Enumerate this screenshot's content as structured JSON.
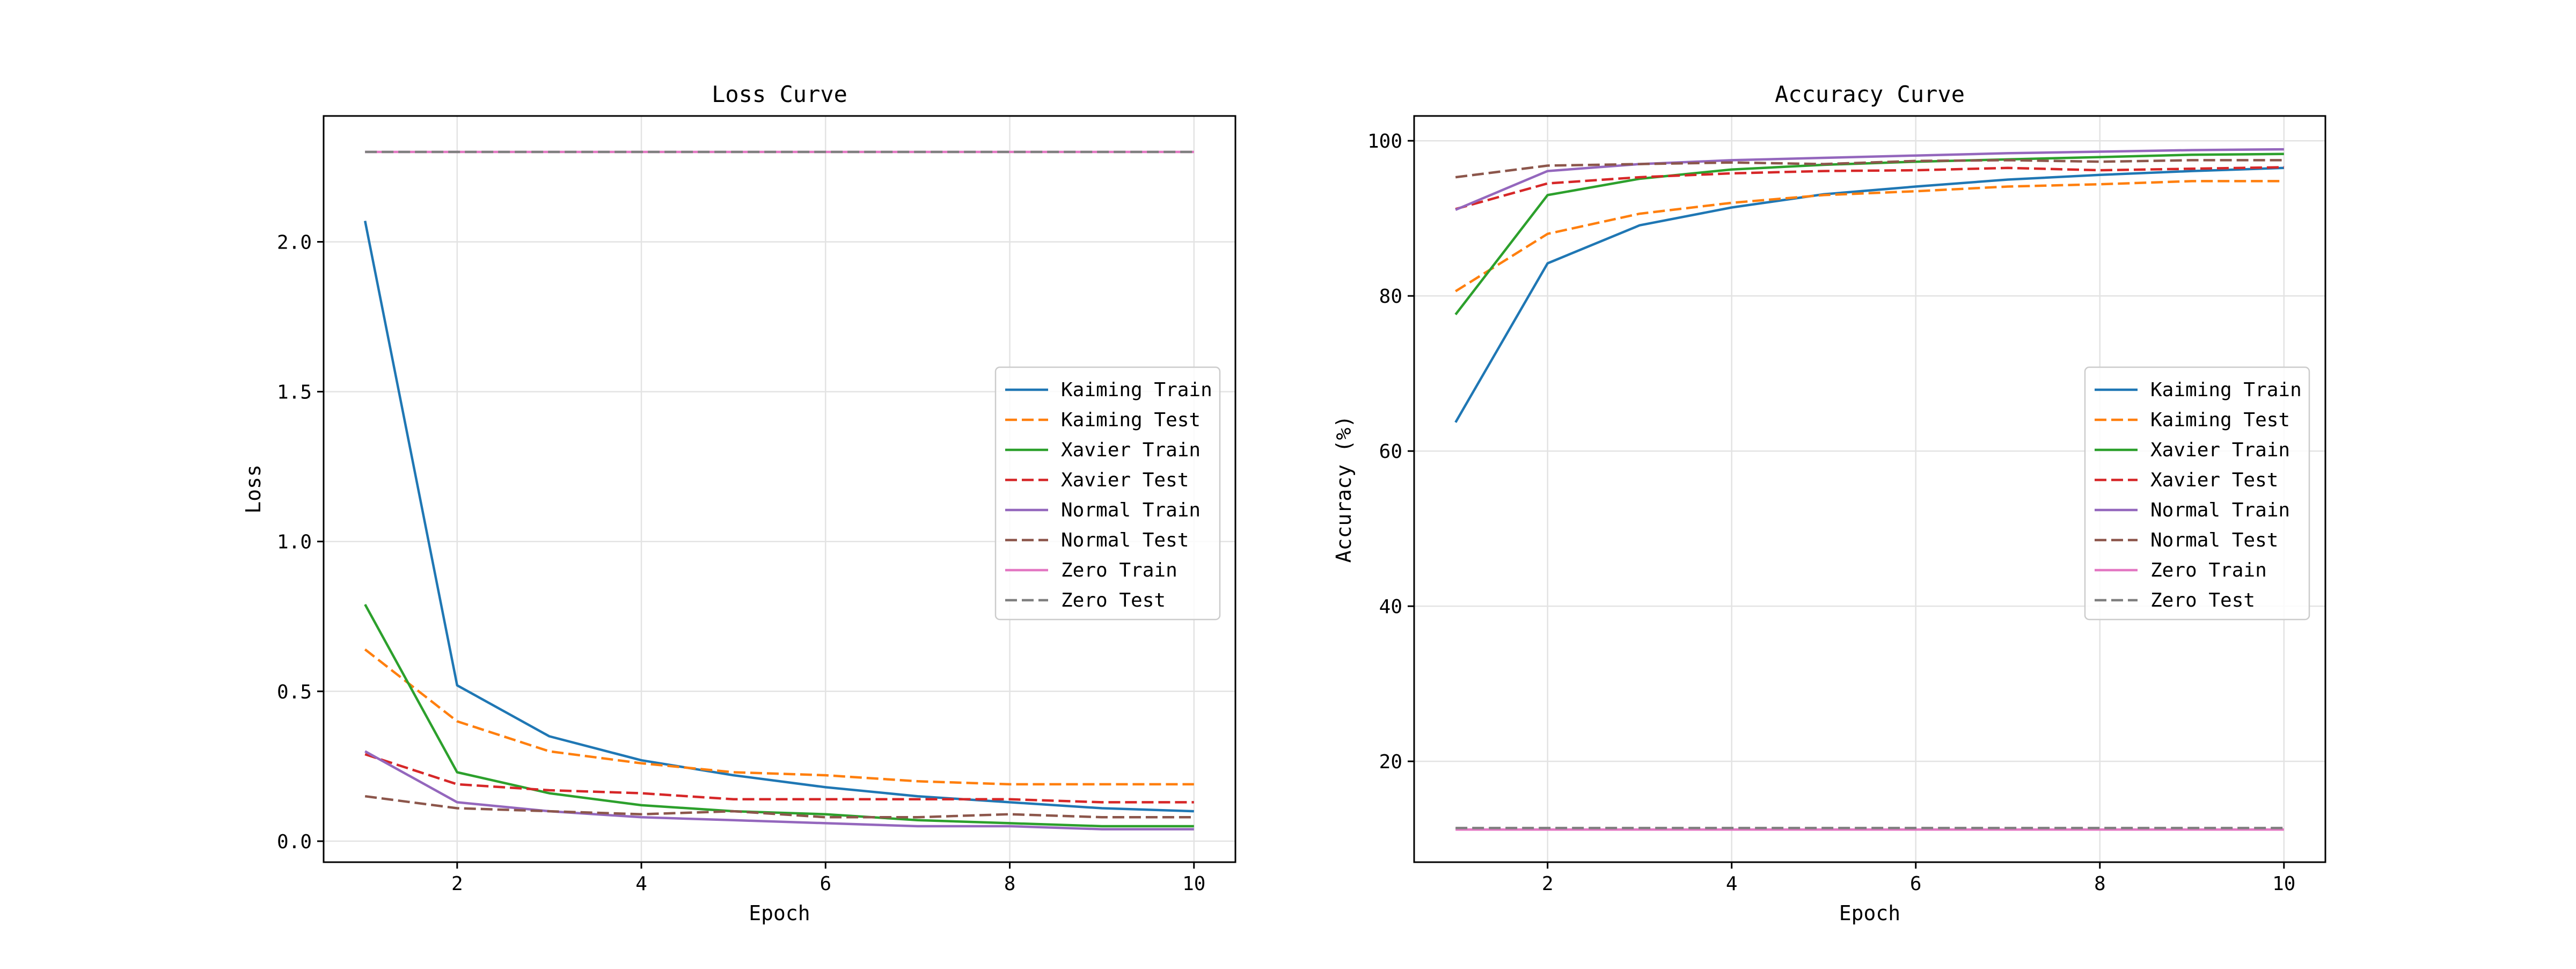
{
  "chart_data": [
    {
      "type": "line",
      "title": "Loss Curve",
      "xlabel": "Epoch",
      "ylabel": "Loss",
      "xlim": [
        0.55,
        10.45
      ],
      "ylim": [
        -0.07,
        2.42
      ],
      "xticks": [
        2,
        4,
        6,
        8,
        10
      ],
      "yticks": [
        0.0,
        0.5,
        1.0,
        1.5,
        2.0
      ],
      "ytick_labels": [
        "0.0",
        "0.5",
        "1.0",
        "1.5",
        "2.0"
      ],
      "grid": true,
      "legend_position": "center-right",
      "x": [
        1,
        2,
        3,
        4,
        5,
        6,
        7,
        8,
        9,
        10
      ],
      "series": [
        {
          "name": "Kaiming Train",
          "color": "#1f77b4",
          "dash": "solid",
          "values": [
            2.07,
            0.52,
            0.35,
            0.27,
            0.22,
            0.18,
            0.15,
            0.13,
            0.11,
            0.1
          ]
        },
        {
          "name": "Kaiming Test",
          "color": "#ff7f0e",
          "dash": "dashed",
          "values": [
            0.64,
            0.4,
            0.3,
            0.26,
            0.23,
            0.22,
            0.2,
            0.19,
            0.19,
            0.19
          ]
        },
        {
          "name": "Xavier Train",
          "color": "#2ca02c",
          "dash": "solid",
          "values": [
            0.79,
            0.23,
            0.16,
            0.12,
            0.1,
            0.09,
            0.07,
            0.06,
            0.05,
            0.05
          ]
        },
        {
          "name": "Xavier Test",
          "color": "#d62728",
          "dash": "dashed",
          "values": [
            0.29,
            0.19,
            0.17,
            0.16,
            0.14,
            0.14,
            0.14,
            0.14,
            0.13,
            0.13
          ]
        },
        {
          "name": "Normal Train",
          "color": "#9467bd",
          "dash": "solid",
          "values": [
            0.3,
            0.13,
            0.1,
            0.08,
            0.07,
            0.06,
            0.05,
            0.05,
            0.04,
            0.04
          ]
        },
        {
          "name": "Normal Test",
          "color": "#8c564b",
          "dash": "dashed",
          "values": [
            0.15,
            0.11,
            0.1,
            0.09,
            0.1,
            0.08,
            0.08,
            0.09,
            0.08,
            0.08
          ]
        },
        {
          "name": "Zero Train",
          "color": "#e377c2",
          "dash": "solid",
          "values": [
            2.3,
            2.3,
            2.3,
            2.3,
            2.3,
            2.3,
            2.3,
            2.3,
            2.3,
            2.3
          ]
        },
        {
          "name": "Zero Test",
          "color": "#7f7f7f",
          "dash": "dashed",
          "values": [
            2.3,
            2.3,
            2.3,
            2.3,
            2.3,
            2.3,
            2.3,
            2.3,
            2.3,
            2.3
          ]
        }
      ]
    },
    {
      "type": "line",
      "title": "Accuracy Curve",
      "xlabel": "Epoch",
      "ylabel": "Accuracy (%)",
      "xlim": [
        0.55,
        10.45
      ],
      "ylim": [
        7.0,
        103.2
      ],
      "xticks": [
        2,
        4,
        6,
        8,
        10
      ],
      "yticks": [
        20,
        40,
        60,
        80,
        100
      ],
      "ytick_labels": [
        "20",
        "40",
        "60",
        "80",
        "100"
      ],
      "grid": true,
      "legend_position": "center-right",
      "x": [
        1,
        2,
        3,
        4,
        5,
        6,
        7,
        8,
        9,
        10
      ],
      "series": [
        {
          "name": "Kaiming Train",
          "color": "#1f77b4",
          "dash": "solid",
          "values": [
            63.7,
            84.2,
            89.1,
            91.4,
            93.1,
            94.1,
            95.0,
            95.6,
            96.1,
            96.5
          ]
        },
        {
          "name": "Kaiming Test",
          "color": "#ff7f0e",
          "dash": "dashed",
          "values": [
            80.6,
            88.0,
            90.6,
            92.0,
            93.0,
            93.5,
            94.1,
            94.4,
            94.8,
            94.8
          ]
        },
        {
          "name": "Xavier Train",
          "color": "#2ca02c",
          "dash": "solid",
          "values": [
            77.6,
            93.0,
            95.1,
            96.3,
            96.9,
            97.3,
            97.6,
            97.9,
            98.2,
            98.3
          ]
        },
        {
          "name": "Xavier Test",
          "color": "#d62728",
          "dash": "dashed",
          "values": [
            91.2,
            94.5,
            95.3,
            95.8,
            96.1,
            96.2,
            96.5,
            96.2,
            96.4,
            96.6
          ]
        },
        {
          "name": "Normal Train",
          "color": "#9467bd",
          "dash": "solid",
          "values": [
            91.1,
            96.1,
            97.0,
            97.5,
            97.8,
            98.1,
            98.4,
            98.6,
            98.8,
            98.9
          ]
        },
        {
          "name": "Normal Test",
          "color": "#8c564b",
          "dash": "dashed",
          "values": [
            95.3,
            96.8,
            97.0,
            97.2,
            97.0,
            97.4,
            97.5,
            97.3,
            97.5,
            97.5
          ]
        },
        {
          "name": "Zero Train",
          "color": "#e377c2",
          "dash": "solid",
          "values": [
            11.2,
            11.2,
            11.2,
            11.2,
            11.2,
            11.2,
            11.2,
            11.2,
            11.2,
            11.2
          ]
        },
        {
          "name": "Zero Test",
          "color": "#7f7f7f",
          "dash": "dashed",
          "values": [
            11.4,
            11.4,
            11.4,
            11.4,
            11.4,
            11.4,
            11.4,
            11.4,
            11.4,
            11.4
          ]
        }
      ]
    }
  ]
}
